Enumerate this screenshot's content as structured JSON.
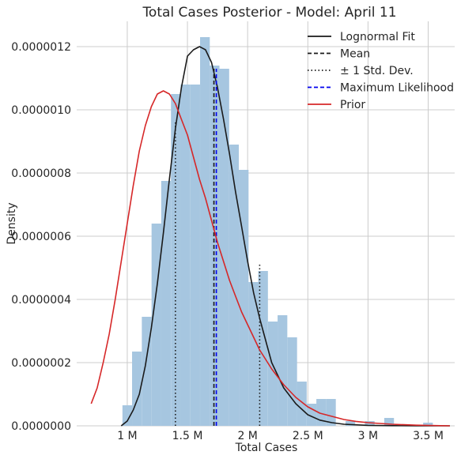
{
  "chart_data": {
    "type": "histogram",
    "title": "Total Cases Posterior - Model: April 11",
    "xlabel": "Total Cases",
    "ylabel": "Density",
    "xlim": [
      0.58,
      3.72
    ],
    "ylim": [
      0,
      1.28e-06
    ],
    "x_ticks": [
      {
        "value": 1.0,
        "label": "1 M"
      },
      {
        "value": 1.5,
        "label": "1.5 M"
      },
      {
        "value": 2.0,
        "label": "2 M"
      },
      {
        "value": 2.5,
        "label": "2.5 M"
      },
      {
        "value": 3.0,
        "label": "3 M"
      },
      {
        "value": 3.5,
        "label": "3.5 M"
      }
    ],
    "y_ticks": [
      {
        "value": 0,
        "label": "0.0000000"
      },
      {
        "value": 2e-07,
        "label": "0.0000002"
      },
      {
        "value": 4e-07,
        "label": "0.0000004"
      },
      {
        "value": 6e-07,
        "label": "0.0000006"
      },
      {
        "value": 8e-07,
        "label": "0.0000008"
      },
      {
        "value": 1e-06,
        "label": "0.0000010"
      },
      {
        "value": 1.2e-06,
        "label": "0.0000012"
      }
    ],
    "grid": true,
    "legend_position": "top-right",
    "histogram": {
      "color": "#a6c6e0",
      "bin_width": 0.0806,
      "bins": [
        {
          "x0": 0.96,
          "value": 6.5e-08
        },
        {
          "x0": 1.04,
          "value": 2.35e-07
        },
        {
          "x0": 1.121,
          "value": 3.45e-07
        },
        {
          "x0": 1.202,
          "value": 6.4e-07
        },
        {
          "x0": 1.282,
          "value": 7.75e-07
        },
        {
          "x0": 1.363,
          "value": 1.05e-06
        },
        {
          "x0": 1.443,
          "value": 1.08e-06
        },
        {
          "x0": 1.524,
          "value": 1.08e-06
        },
        {
          "x0": 1.605,
          "value": 1.23e-06
        },
        {
          "x0": 1.685,
          "value": 1.14e-06
        },
        {
          "x0": 1.766,
          "value": 1.13e-06
        },
        {
          "x0": 1.846,
          "value": 8.9e-07
        },
        {
          "x0": 1.927,
          "value": 8.1e-07
        },
        {
          "x0": 2.007,
          "value": 4.55e-07
        },
        {
          "x0": 2.088,
          "value": 4.9e-07
        },
        {
          "x0": 2.169,
          "value": 3.3e-07
        },
        {
          "x0": 2.249,
          "value": 3.5e-07
        },
        {
          "x0": 2.33,
          "value": 2.8e-07
        },
        {
          "x0": 2.41,
          "value": 1.4e-07
        },
        {
          "x0": 2.491,
          "value": 7e-08
        },
        {
          "x0": 2.571,
          "value": 8.5e-08
        },
        {
          "x0": 2.652,
          "value": 8.5e-08
        },
        {
          "x0": 2.733,
          "value": 0.0
        },
        {
          "x0": 2.813,
          "value": 1.5e-08
        },
        {
          "x0": 2.894,
          "value": 0.0
        },
        {
          "x0": 2.974,
          "value": 1.5e-08
        },
        {
          "x0": 3.055,
          "value": 0.0
        },
        {
          "x0": 3.135,
          "value": 2.5e-08
        },
        {
          "x0": 3.216,
          "value": 0.0
        },
        {
          "x0": 3.297,
          "value": 0.0
        },
        {
          "x0": 3.377,
          "value": 0.0
        },
        {
          "x0": 3.458,
          "value": 1e-08
        },
        {
          "x0": 3.538,
          "value": 0.0
        },
        {
          "x0": 3.619,
          "value": 0.0
        }
      ]
    },
    "series": [
      {
        "name": "Lognormal Fit",
        "type": "line",
        "color": "#1a1a1a",
        "dash": "solid",
        "x": [
          0.95,
          1.0,
          1.05,
          1.1,
          1.15,
          1.2,
          1.25,
          1.3,
          1.35,
          1.4,
          1.45,
          1.5,
          1.55,
          1.6,
          1.65,
          1.7,
          1.75,
          1.8,
          1.85,
          1.9,
          1.95,
          2.0,
          2.05,
          2.1,
          2.2,
          2.3,
          2.4,
          2.5,
          2.6,
          2.7,
          2.8,
          3.0,
          3.2,
          3.4,
          3.68
        ],
        "y": [
          0.0,
          1.5e-08,
          5e-08,
          1e-07,
          1.9e-07,
          3.1e-07,
          4.5e-07,
          6.1e-07,
          7.8e-07,
          9.4e-07,
          1.07e-06,
          1.17e-06,
          1.19e-06,
          1.2e-06,
          1.19e-06,
          1.15e-06,
          1.07e-06,
          9.7e-07,
          8.6e-07,
          7.4e-07,
          6.3e-07,
          5.2e-07,
          4.2e-07,
          3.4e-07,
          2e-07,
          1.2e-07,
          7e-08,
          3.5e-08,
          1.8e-08,
          1e-08,
          5e-09,
          1.5e-09,
          4e-10,
          0.0,
          0.0
        ]
      },
      {
        "name": "Mean",
        "type": "vline",
        "color": "#1a1a1a",
        "dash": "dashed",
        "x": 1.72,
        "y_top": 1.13e-06
      },
      {
        "name": "± 1 Std. Dev.",
        "type": "vlines",
        "color": "#1a1a1a",
        "dash": "dotted",
        "lines": [
          {
            "x": 1.4,
            "y_top": 9.6e-07
          },
          {
            "x": 2.1,
            "y_top": 5.1e-07
          }
        ]
      },
      {
        "name": "Maximum Likelihood",
        "type": "vline",
        "color": "#0000ee",
        "dash": "dashed",
        "x": 1.74,
        "y_top": 1.13e-06
      },
      {
        "name": "Prior",
        "type": "line",
        "color": "#d62728",
        "dash": "solid",
        "x": [
          0.7,
          0.75,
          0.8,
          0.85,
          0.9,
          0.95,
          1.0,
          1.05,
          1.1,
          1.15,
          1.2,
          1.25,
          1.3,
          1.35,
          1.4,
          1.45,
          1.5,
          1.55,
          1.6,
          1.65,
          1.7,
          1.75,
          1.8,
          1.85,
          1.9,
          1.95,
          2.0,
          2.1,
          2.2,
          2.3,
          2.4,
          2.5,
          2.6,
          2.7,
          2.8,
          2.9,
          3.0,
          3.2,
          3.4,
          3.68
        ],
        "y": [
          7e-08,
          1.2e-07,
          2e-07,
          2.9e-07,
          4e-07,
          5.2e-07,
          6.4e-07,
          7.6e-07,
          8.7e-07,
          9.5e-07,
          1.01e-06,
          1.05e-06,
          1.06e-06,
          1.05e-06,
          1.02e-06,
          9.7e-07,
          9.2e-07,
          8.5e-07,
          7.8e-07,
          7.2e-07,
          6.5e-07,
          5.8e-07,
          5.2e-07,
          4.6e-07,
          4.1e-07,
          3.6e-07,
          3.2e-07,
          2.4e-07,
          1.8e-07,
          1.3e-07,
          9e-08,
          6e-08,
          4e-08,
          3e-08,
          2e-08,
          1.4e-08,
          1e-08,
          5e-09,
          2e-09,
          0.0
        ]
      }
    ]
  }
}
